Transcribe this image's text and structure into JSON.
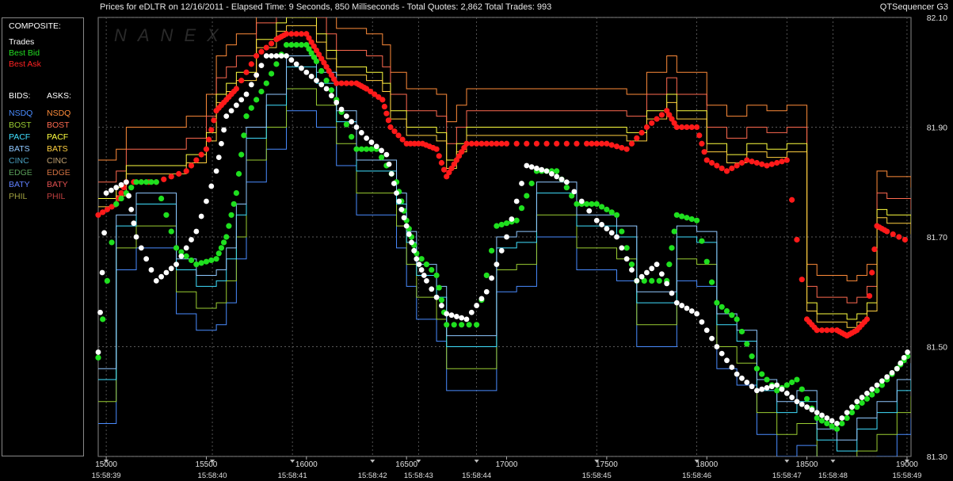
{
  "header": {
    "title": "Prices for  eDLTR  on  12/16/2011  -  Elapsed Time: 9 Seconds, 850 Milliseconds  -  Total Quotes: 2,862  Total Trades: 993",
    "brand": "QTSequencer G3"
  },
  "watermark": "NANEX",
  "legend": {
    "heading": "COMPOSITE:",
    "composite": [
      {
        "label": "Trades",
        "color": "#ffffff"
      },
      {
        "label": "Best Bid",
        "color": "#22dd22"
      },
      {
        "label": "Best Ask",
        "color": "#ff2222"
      }
    ],
    "bids_label": "BIDS:",
    "asks_label": "ASKS:",
    "exchanges": [
      {
        "name": "NSDQ",
        "bid_color": "#4a8cff",
        "ask_color": "#ff8c3a"
      },
      {
        "name": "BOST",
        "bid_color": "#9acd32",
        "ask_color": "#ff6a50"
      },
      {
        "name": "PACF",
        "bid_color": "#40e0ff",
        "ask_color": "#ffff40"
      },
      {
        "name": "BATS",
        "bid_color": "#8fc8ff",
        "ask_color": "#ffd040"
      },
      {
        "name": "CINC",
        "bid_color": "#4aa0c0",
        "ask_color": "#c0a070"
      },
      {
        "name": "EDGE",
        "bid_color": "#5aa05a",
        "ask_color": "#d07040"
      },
      {
        "name": "BATY",
        "bid_color": "#6080ff",
        "ask_color": "#e05050"
      },
      {
        "name": "PHIL",
        "bid_color": "#a0a040",
        "ask_color": "#c04040"
      }
    ]
  },
  "chart_data": {
    "type": "scatter",
    "y_ticks": [
      "82.10",
      "81.90",
      "81.70",
      "81.50",
      "81.30"
    ],
    "ylim": [
      81.3,
      82.1
    ],
    "x_ticks": [
      "15000",
      "15500",
      "16000",
      "16500",
      "17000",
      "17500",
      "18000",
      "18500",
      "19000"
    ],
    "xlim": [
      14960,
      19020
    ],
    "time_labels": [
      {
        "seq": 15000,
        "label": "15:58:39"
      },
      {
        "seq": 15530,
        "label": "15:58:40"
      },
      {
        "seq": 15930,
        "label": "15:58:41"
      },
      {
        "seq": 16330,
        "label": "15:58:42"
      },
      {
        "seq": 16560,
        "label": "15:58:43"
      },
      {
        "seq": 16850,
        "label": "15:58:44"
      },
      {
        "seq": 17450,
        "label": "15:58:45"
      },
      {
        "seq": 17950,
        "label": "15:58:46"
      },
      {
        "seq": 18400,
        "label": "15:58:47"
      },
      {
        "seq": 18630,
        "label": "15:58:48"
      },
      {
        "seq": 19000,
        "label": "15:58:49"
      }
    ],
    "best_ask": [
      [
        14960,
        81.74
      ],
      [
        15050,
        81.76
      ],
      [
        15100,
        81.8
      ],
      [
        15250,
        81.8
      ],
      [
        15400,
        81.82
      ],
      [
        15500,
        81.86
      ],
      [
        15550,
        81.93
      ],
      [
        15600,
        81.95
      ],
      [
        15650,
        81.97
      ],
      [
        15750,
        82.03
      ],
      [
        15850,
        82.06
      ],
      [
        15900,
        82.07
      ],
      [
        16000,
        82.07
      ],
      [
        16050,
        82.04
      ],
      [
        16100,
        82.01
      ],
      [
        16150,
        81.98
      ],
      [
        16250,
        81.98
      ],
      [
        16300,
        81.97
      ],
      [
        16380,
        81.95
      ],
      [
        16420,
        81.9
      ],
      [
        16500,
        81.87
      ],
      [
        16580,
        81.87
      ],
      [
        16650,
        81.86
      ],
      [
        16700,
        81.81
      ],
      [
        16750,
        81.84
      ],
      [
        16800,
        81.87
      ],
      [
        16900,
        81.87
      ],
      [
        17000,
        81.87
      ],
      [
        17200,
        81.87
      ],
      [
        17400,
        81.87
      ],
      [
        17500,
        81.87
      ],
      [
        17600,
        81.86
      ],
      [
        17700,
        81.9
      ],
      [
        17800,
        81.93
      ],
      [
        17850,
        81.9
      ],
      [
        17950,
        81.9
      ],
      [
        18000,
        81.84
      ],
      [
        18100,
        81.82
      ],
      [
        18200,
        81.84
      ],
      [
        18300,
        81.83
      ],
      [
        18400,
        81.84
      ],
      [
        18500,
        81.55
      ],
      [
        18550,
        81.53
      ],
      [
        18650,
        81.53
      ],
      [
        18700,
        81.52
      ],
      [
        18750,
        81.53
      ],
      [
        18800,
        81.55
      ],
      [
        18850,
        81.72
      ],
      [
        18900,
        81.71
      ],
      [
        19020,
        81.69
      ]
    ],
    "best_bid": [
      [
        14960,
        81.48
      ],
      [
        15050,
        81.76
      ],
      [
        15150,
        81.8
      ],
      [
        15250,
        81.8
      ],
      [
        15350,
        81.68
      ],
      [
        15450,
        81.65
      ],
      [
        15550,
        81.66
      ],
      [
        15600,
        81.7
      ],
      [
        15650,
        81.78
      ],
      [
        15700,
        81.92
      ],
      [
        15800,
        81.98
      ],
      [
        15900,
        82.05
      ],
      [
        16000,
        82.05
      ],
      [
        16050,
        82.02
      ],
      [
        16150,
        81.95
      ],
      [
        16250,
        81.86
      ],
      [
        16350,
        81.86
      ],
      [
        16450,
        81.8
      ],
      [
        16500,
        81.73
      ],
      [
        16550,
        81.67
      ],
      [
        16650,
        81.63
      ],
      [
        16700,
        81.54
      ],
      [
        16850,
        81.54
      ],
      [
        16950,
        81.72
      ],
      [
        17050,
        81.73
      ],
      [
        17150,
        81.82
      ],
      [
        17250,
        81.82
      ],
      [
        17350,
        81.76
      ],
      [
        17450,
        81.76
      ],
      [
        17550,
        81.74
      ],
      [
        17650,
        81.62
      ],
      [
        17800,
        81.62
      ],
      [
        17850,
        81.74
      ],
      [
        17950,
        81.73
      ],
      [
        18050,
        81.58
      ],
      [
        18150,
        81.55
      ],
      [
        18250,
        81.46
      ],
      [
        18350,
        81.42
      ],
      [
        18450,
        81.44
      ],
      [
        18550,
        81.37
      ],
      [
        18650,
        81.35
      ],
      [
        18750,
        81.39
      ],
      [
        18850,
        81.42
      ],
      [
        18950,
        81.46
      ],
      [
        19020,
        81.49
      ]
    ],
    "trades": [
      [
        14960,
        81.49
      ],
      [
        15000,
        81.78
      ],
      [
        15100,
        81.8
      ],
      [
        15150,
        81.7
      ],
      [
        15250,
        81.62
      ],
      [
        15350,
        81.65
      ],
      [
        15450,
        81.71
      ],
      [
        15550,
        81.82
      ],
      [
        15600,
        81.92
      ],
      [
        15700,
        81.96
      ],
      [
        15800,
        82.03
      ],
      [
        15900,
        82.03
      ],
      [
        16000,
        82.0
      ],
      [
        16100,
        81.97
      ],
      [
        16200,
        81.92
      ],
      [
        16300,
        81.88
      ],
      [
        16400,
        81.85
      ],
      [
        16450,
        81.78
      ],
      [
        16500,
        81.72
      ],
      [
        16550,
        81.66
      ],
      [
        16600,
        81.62
      ],
      [
        16700,
        81.56
      ],
      [
        16800,
        81.55
      ],
      [
        16900,
        81.6
      ],
      [
        17000,
        81.7
      ],
      [
        17100,
        81.83
      ],
      [
        17200,
        81.82
      ],
      [
        17300,
        81.8
      ],
      [
        17450,
        81.73
      ],
      [
        17550,
        81.7
      ],
      [
        17650,
        81.62
      ],
      [
        17750,
        81.65
      ],
      [
        17850,
        81.58
      ],
      [
        17950,
        81.56
      ],
      [
        18050,
        81.5
      ],
      [
        18150,
        81.45
      ],
      [
        18250,
        81.42
      ],
      [
        18350,
        81.43
      ],
      [
        18450,
        81.4
      ],
      [
        18550,
        81.38
      ],
      [
        18650,
        81.36
      ],
      [
        18750,
        81.4
      ],
      [
        18850,
        81.43
      ],
      [
        18950,
        81.46
      ],
      [
        19020,
        81.5
      ]
    ]
  }
}
